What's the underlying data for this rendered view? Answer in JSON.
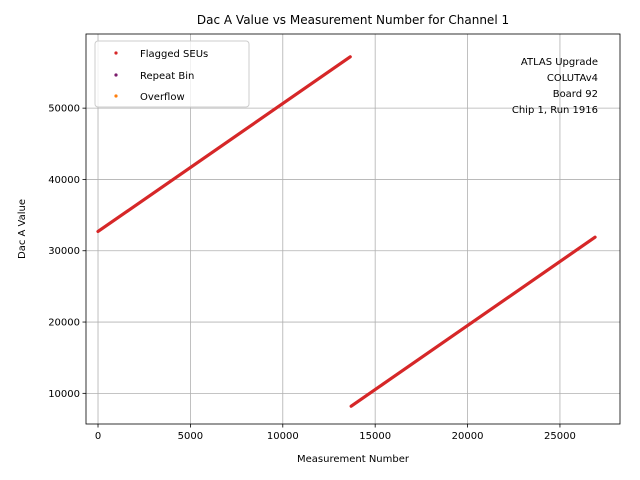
{
  "chart_data": {
    "type": "scatter",
    "title": "Dac A Value vs Measurement Number for Channel 1",
    "xlabel": "Measurement Number",
    "ylabel": "Dac A Value",
    "xlim": [
      -650,
      28250
    ],
    "ylim": [
      5700,
      60400
    ],
    "xticks": [
      0,
      5000,
      10000,
      15000,
      20000,
      25000
    ],
    "yticks": [
      10000,
      20000,
      30000,
      40000,
      50000
    ],
    "grid": true,
    "legend_position": "top-left",
    "annotation": [
      "ATLAS Upgrade",
      "COLUTAv4",
      "Board 92",
      "Chip 1, Run 1916"
    ],
    "series": [
      {
        "name": "Flagged SEUs",
        "color": "#d62728",
        "segments": [
          {
            "x": [
              0,
              13650
            ],
            "y": [
              32700,
              57200
            ]
          },
          {
            "x": [
              13700,
              26900
            ],
            "y": [
              8200,
              31900
            ]
          }
        ]
      },
      {
        "name": "Repeat Bin",
        "color": "#7b1b6b",
        "segments": []
      },
      {
        "name": "Overflow",
        "color": "#ff7f0e",
        "segments": []
      }
    ]
  }
}
